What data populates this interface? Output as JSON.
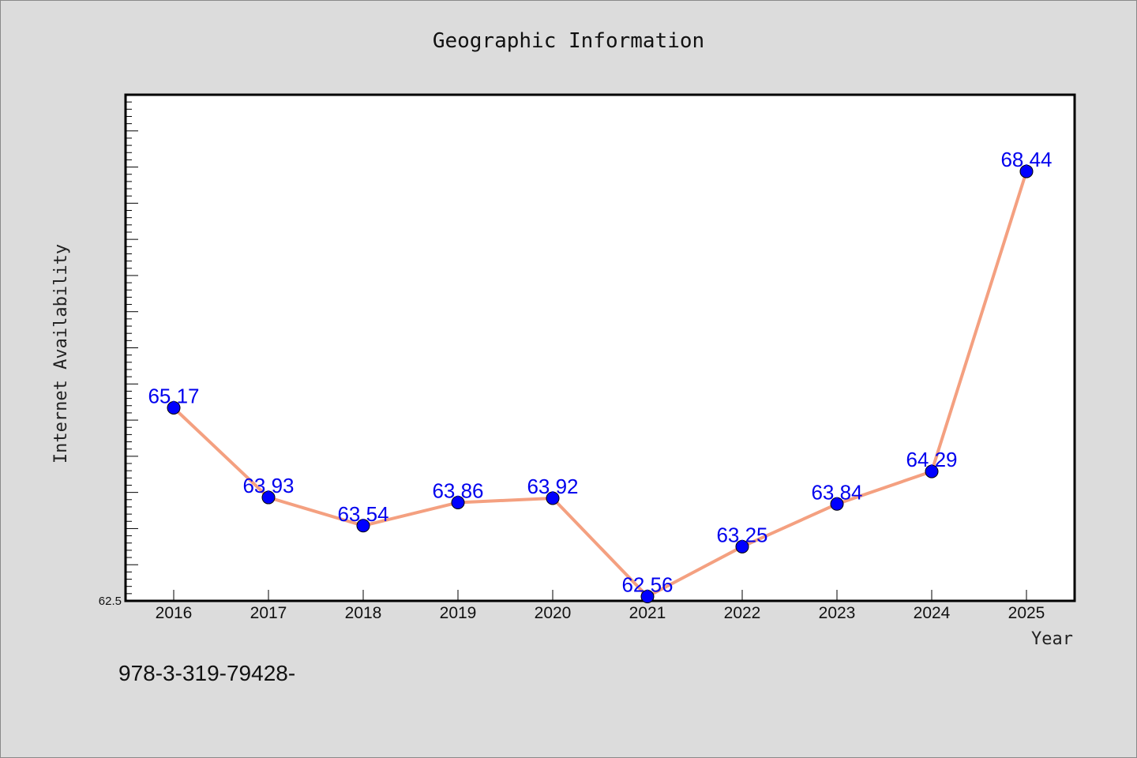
{
  "chart_data": {
    "type": "line",
    "title": "Geographic Information",
    "xlabel": "Year",
    "ylabel": "Internet Availability",
    "categories": [
      "2016",
      "2017",
      "2018",
      "2019",
      "2020",
      "2021",
      "2022",
      "2023",
      "2024",
      "2025"
    ],
    "series": [
      {
        "values": [
          65.17,
          63.93,
          63.54,
          63.86,
          63.92,
          62.56,
          63.25,
          63.84,
          64.29,
          68.44
        ]
      }
    ],
    "data_labels": [
      "65.17",
      "63.93",
      "63.54",
      "63.86",
      "63.92",
      "62.56",
      "63.25",
      "63.84",
      "64.29",
      "68.44"
    ],
    "y_tick_labels": [
      "62.5"
    ],
    "ylim": [
      62.5,
      69.5
    ],
    "grid": false,
    "legend": "none",
    "colors": {
      "line": "#f4a080",
      "marker": "#0000ff",
      "label": "#0000ee",
      "background": "#dcdcdc",
      "plot_area": "#ffffff"
    }
  },
  "footer_text": "978-3-319-79428-"
}
